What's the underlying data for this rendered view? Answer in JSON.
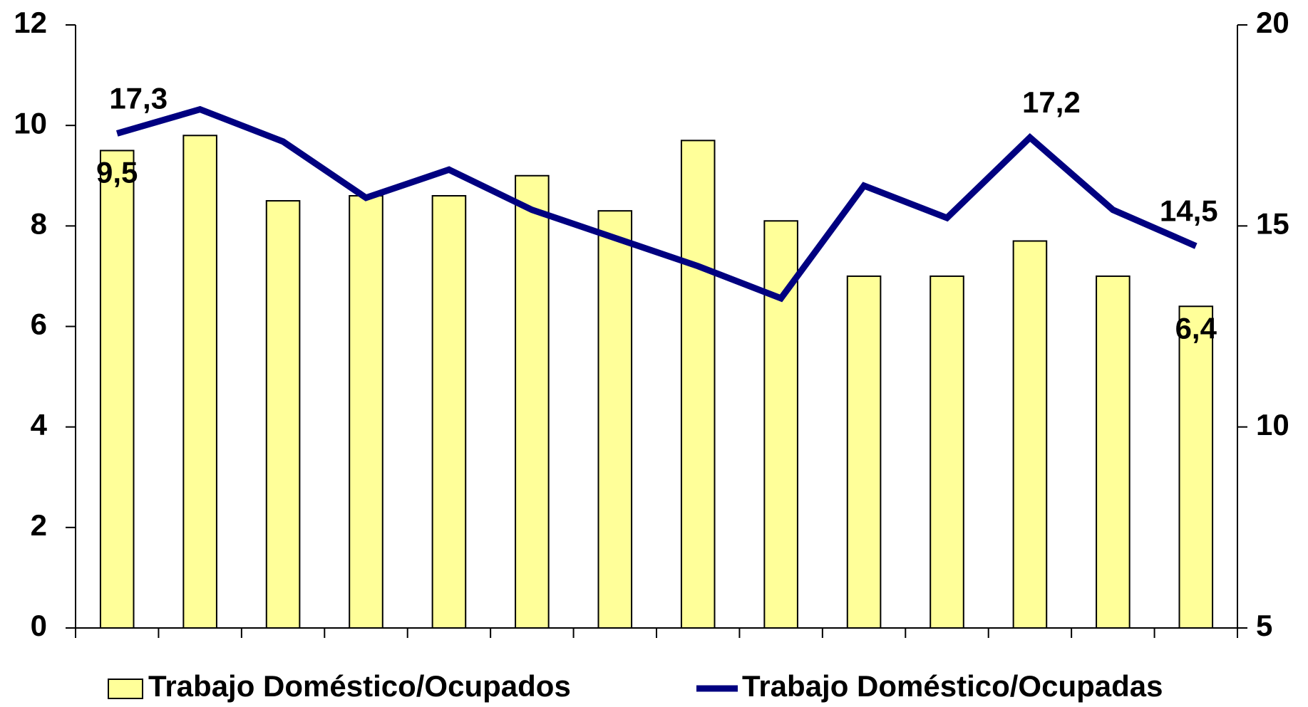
{
  "chart_data": {
    "type": "bar-line",
    "categories": [
      null,
      null,
      null,
      null,
      null,
      null,
      null,
      null,
      null,
      null,
      null,
      null,
      null,
      null
    ],
    "series": [
      {
        "name": "Trabajo Doméstico/Ocupados",
        "type": "bar",
        "color": "#ffff99",
        "axis": "y",
        "values": [
          9.5,
          9.8,
          8.5,
          8.6,
          8.6,
          9.0,
          8.3,
          9.7,
          8.1,
          7.0,
          7.0,
          7.7,
          7.0,
          6.4
        ],
        "value_labels": [
          "9,5",
          null,
          null,
          null,
          null,
          null,
          null,
          null,
          null,
          null,
          null,
          null,
          null,
          "6,4"
        ]
      },
      {
        "name": "Trabajo Doméstico/Ocupadas",
        "type": "line",
        "color": "#000080",
        "axis": "y2",
        "values": [
          17.3,
          17.9,
          17.1,
          15.7,
          16.4,
          15.4,
          14.7,
          14.0,
          13.2,
          16.0,
          15.2,
          17.2,
          15.4,
          14.5
        ],
        "value_labels": [
          "17,3",
          null,
          null,
          null,
          null,
          null,
          null,
          null,
          null,
          null,
          null,
          "17,2",
          null,
          "14,5"
        ]
      }
    ],
    "ylim": [
      0,
      12
    ],
    "yticks": [
      0,
      2,
      4,
      6,
      8,
      10,
      12
    ],
    "y2lim": [
      5,
      20
    ],
    "y2ticks": [
      5,
      10,
      15,
      20
    ],
    "legend": "bottom"
  }
}
